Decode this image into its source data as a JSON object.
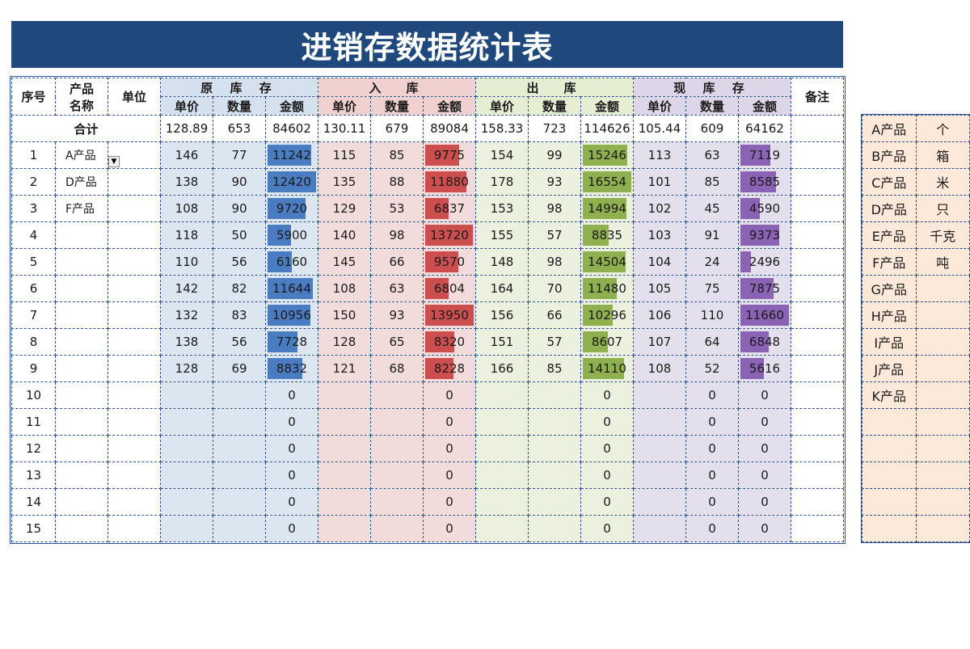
{
  "title": "进销存数据统计表",
  "headers": {
    "seq": "序号",
    "product_line1": "产品",
    "product_line2": "名称",
    "unit": "单位",
    "remark": "备注",
    "groups": [
      "原 库 存",
      "入　库",
      "出　库",
      "现 库 存"
    ],
    "sub": [
      "单价",
      "数量",
      "金额"
    ]
  },
  "total": {
    "label": "合计",
    "values": [
      "128.89",
      "653",
      "84602",
      "130.11",
      "679",
      "89084",
      "158.33",
      "723",
      "114626",
      "105.44",
      "609",
      "64162"
    ]
  },
  "rows": [
    {
      "seq": "1",
      "name": "A产品",
      "cells": [
        "146",
        "77",
        "11242",
        "115",
        "85",
        "9775",
        "154",
        "99",
        "15246",
        "113",
        "63",
        "7119"
      ]
    },
    {
      "seq": "2",
      "name": "D产品",
      "cells": [
        "138",
        "90",
        "12420",
        "135",
        "88",
        "11880",
        "178",
        "93",
        "16554",
        "101",
        "85",
        "8585"
      ]
    },
    {
      "seq": "3",
      "name": "F产品",
      "cells": [
        "108",
        "90",
        "9720",
        "129",
        "53",
        "6837",
        "153",
        "98",
        "14994",
        "102",
        "45",
        "4590"
      ]
    },
    {
      "seq": "4",
      "name": "",
      "cells": [
        "118",
        "50",
        "5900",
        "140",
        "98",
        "13720",
        "155",
        "57",
        "8835",
        "103",
        "91",
        "9373"
      ]
    },
    {
      "seq": "5",
      "name": "",
      "cells": [
        "110",
        "56",
        "6160",
        "145",
        "66",
        "9570",
        "148",
        "98",
        "14504",
        "104",
        "24",
        "2496"
      ]
    },
    {
      "seq": "6",
      "name": "",
      "cells": [
        "142",
        "82",
        "11644",
        "108",
        "63",
        "6804",
        "164",
        "70",
        "11480",
        "105",
        "75",
        "7875"
      ]
    },
    {
      "seq": "7",
      "name": "",
      "cells": [
        "132",
        "83",
        "10956",
        "150",
        "93",
        "13950",
        "156",
        "66",
        "10296",
        "106",
        "110",
        "11660"
      ]
    },
    {
      "seq": "8",
      "name": "",
      "cells": [
        "138",
        "56",
        "7728",
        "128",
        "65",
        "8320",
        "151",
        "57",
        "8607",
        "107",
        "64",
        "6848"
      ]
    },
    {
      "seq": "9",
      "name": "",
      "cells": [
        "128",
        "69",
        "8832",
        "121",
        "68",
        "8228",
        "166",
        "85",
        "14110",
        "108",
        "52",
        "5616"
      ]
    },
    {
      "seq": "10",
      "name": "",
      "cells": [
        "",
        "",
        "0",
        "",
        "",
        "0",
        "",
        "",
        "0",
        "",
        "0",
        "0"
      ]
    },
    {
      "seq": "11",
      "name": "",
      "cells": [
        "",
        "",
        "0",
        "",
        "",
        "0",
        "",
        "",
        "0",
        "",
        "0",
        "0"
      ]
    },
    {
      "seq": "12",
      "name": "",
      "cells": [
        "",
        "",
        "0",
        "",
        "",
        "0",
        "",
        "",
        "0",
        "",
        "0",
        "0"
      ]
    },
    {
      "seq": "13",
      "name": "",
      "cells": [
        "",
        "",
        "0",
        "",
        "",
        "0",
        "",
        "",
        "0",
        "",
        "0",
        "0"
      ]
    },
    {
      "seq": "14",
      "name": "",
      "cells": [
        "",
        "",
        "0",
        "",
        "",
        "0",
        "",
        "",
        "0",
        "",
        "0",
        "0"
      ]
    },
    {
      "seq": "15",
      "name": "",
      "cells": [
        "",
        "",
        "0",
        "",
        "",
        "0",
        "",
        "",
        "0",
        "",
        "0",
        "0"
      ]
    }
  ],
  "side_list": [
    {
      "product": "A产品",
      "unit": "个"
    },
    {
      "product": "B产品",
      "unit": "箱"
    },
    {
      "product": "C产品",
      "unit": "米"
    },
    {
      "product": "D产品",
      "unit": "只"
    },
    {
      "product": "E产品",
      "unit": "千克"
    },
    {
      "product": "F产品",
      "unit": "吨"
    },
    {
      "product": "G产品",
      "unit": ""
    },
    {
      "product": "H产品",
      "unit": ""
    },
    {
      "product": "I产品",
      "unit": ""
    },
    {
      "product": "J产品",
      "unit": ""
    },
    {
      "product": "K产品",
      "unit": ""
    },
    {
      "product": "",
      "unit": ""
    },
    {
      "product": "",
      "unit": ""
    },
    {
      "product": "",
      "unit": ""
    },
    {
      "product": "",
      "unit": ""
    },
    {
      "product": "",
      "unit": ""
    }
  ],
  "colors": {
    "title_bg": "#1f497d",
    "original_stock": "#dce6f1",
    "inbound": "#f2dcdb",
    "outbound": "#ebf1de",
    "current_stock": "#e4dfec",
    "side_bg": "#fde9d9",
    "bar_blue": "#4a7cc2",
    "bar_red": "#cd4e4e",
    "bar_green": "#8fb04e",
    "bar_purple": "#8a63b4"
  },
  "icons": {
    "dropdown": "dropdown-arrow-icon"
  }
}
